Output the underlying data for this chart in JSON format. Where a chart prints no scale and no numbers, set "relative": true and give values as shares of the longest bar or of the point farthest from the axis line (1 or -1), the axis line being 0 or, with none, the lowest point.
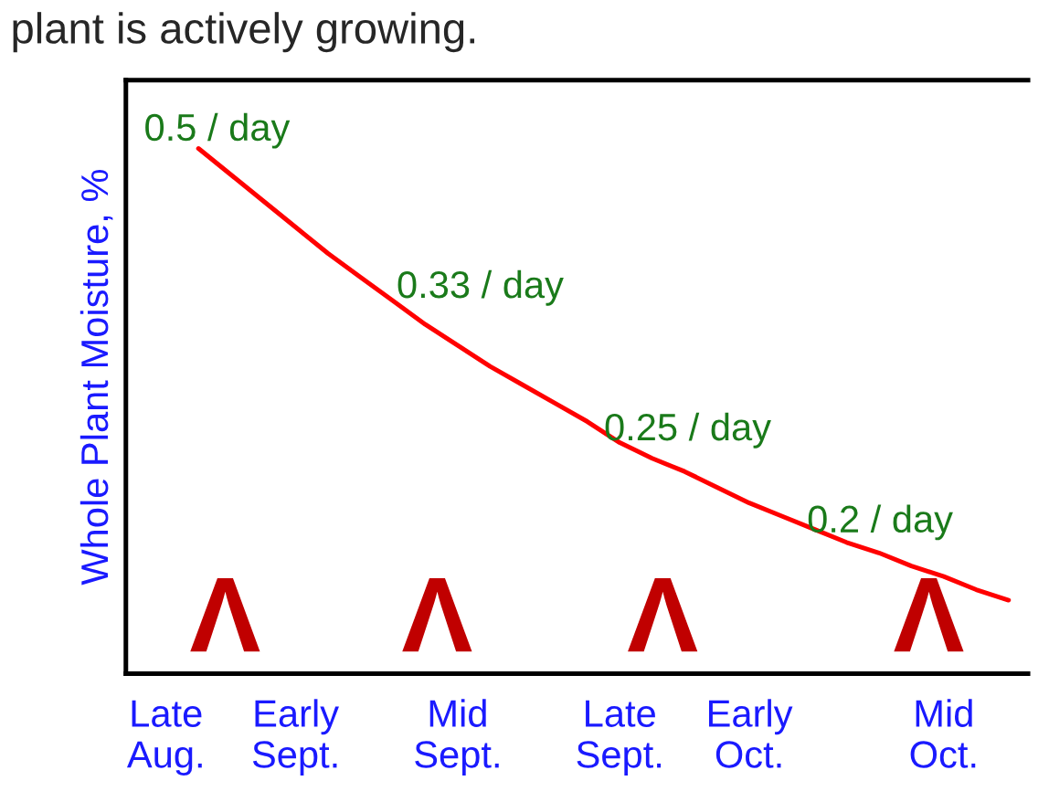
{
  "chart_data": {
    "type": "line",
    "relative": true,
    "ylabel": "Whole Plant Moisture, %",
    "categories": [
      "Late\nAug.",
      null,
      null,
      null,
      "Early\nSept.",
      null,
      null,
      null,
      null,
      "Mid\nSept.",
      null,
      null,
      null,
      null,
      "Late\nSept.",
      null,
      null,
      null,
      "Early\nOct.",
      null,
      null,
      null,
      null,
      null,
      "Mid\nOct.",
      null,
      null
    ],
    "series": [
      {
        "color": "#ff0000",
        "values": [
          null,
          1,
          0.95,
          0.9,
          0.85,
          0.8,
          0.755,
          0.71,
          0.665,
          0.625,
          0.585,
          0.55,
          0.515,
          0.48,
          0.44,
          0.41,
          0.385,
          0.355,
          0.325,
          0.3,
          0.275,
          0.25,
          0.23,
          0.205,
          0.185,
          0.16,
          0.14
        ]
      }
    ],
    "annotations": [
      "plant is actively growing.",
      "0.5 / day",
      "0.33 / day",
      "0.25 / day",
      "0.2 / day",
      "Λ",
      "Λ",
      "Λ",
      "Λ"
    ],
    "grid": false,
    "marker": "none",
    "line_style": "solid"
  }
}
